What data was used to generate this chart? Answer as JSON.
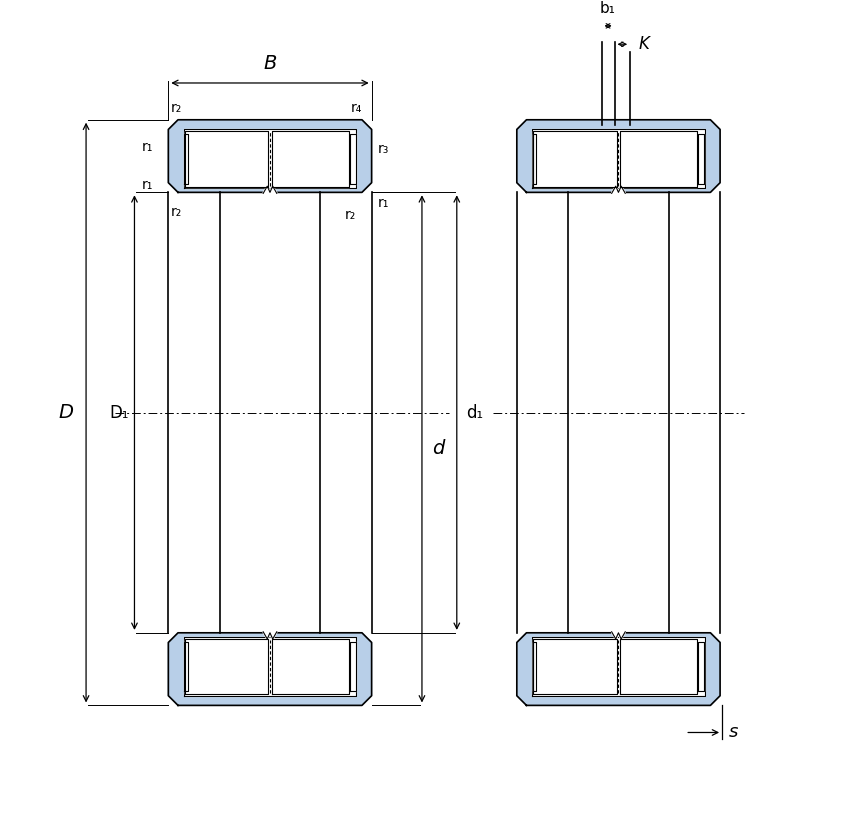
{
  "bg_color": "#ffffff",
  "bearing_color": "#b8cfe8",
  "bearing_edge_color": "#000000",
  "line_color": "#000000",
  "fig_width": 8.41,
  "fig_height": 8.34,
  "labels": {
    "B": "B",
    "D": "D",
    "D1": "D₁",
    "d": "d",
    "d1": "d₁",
    "r2_tl": "r₂",
    "r4": "r₄",
    "r1_outer_top": "r₁",
    "r3": "r₃",
    "r1_inner_top": "r₁",
    "r2_bl": "r₂",
    "r2_br": "r₂",
    "r1_inner_bot": "r₁",
    "b1": "b₁",
    "K": "K",
    "s": "s"
  }
}
